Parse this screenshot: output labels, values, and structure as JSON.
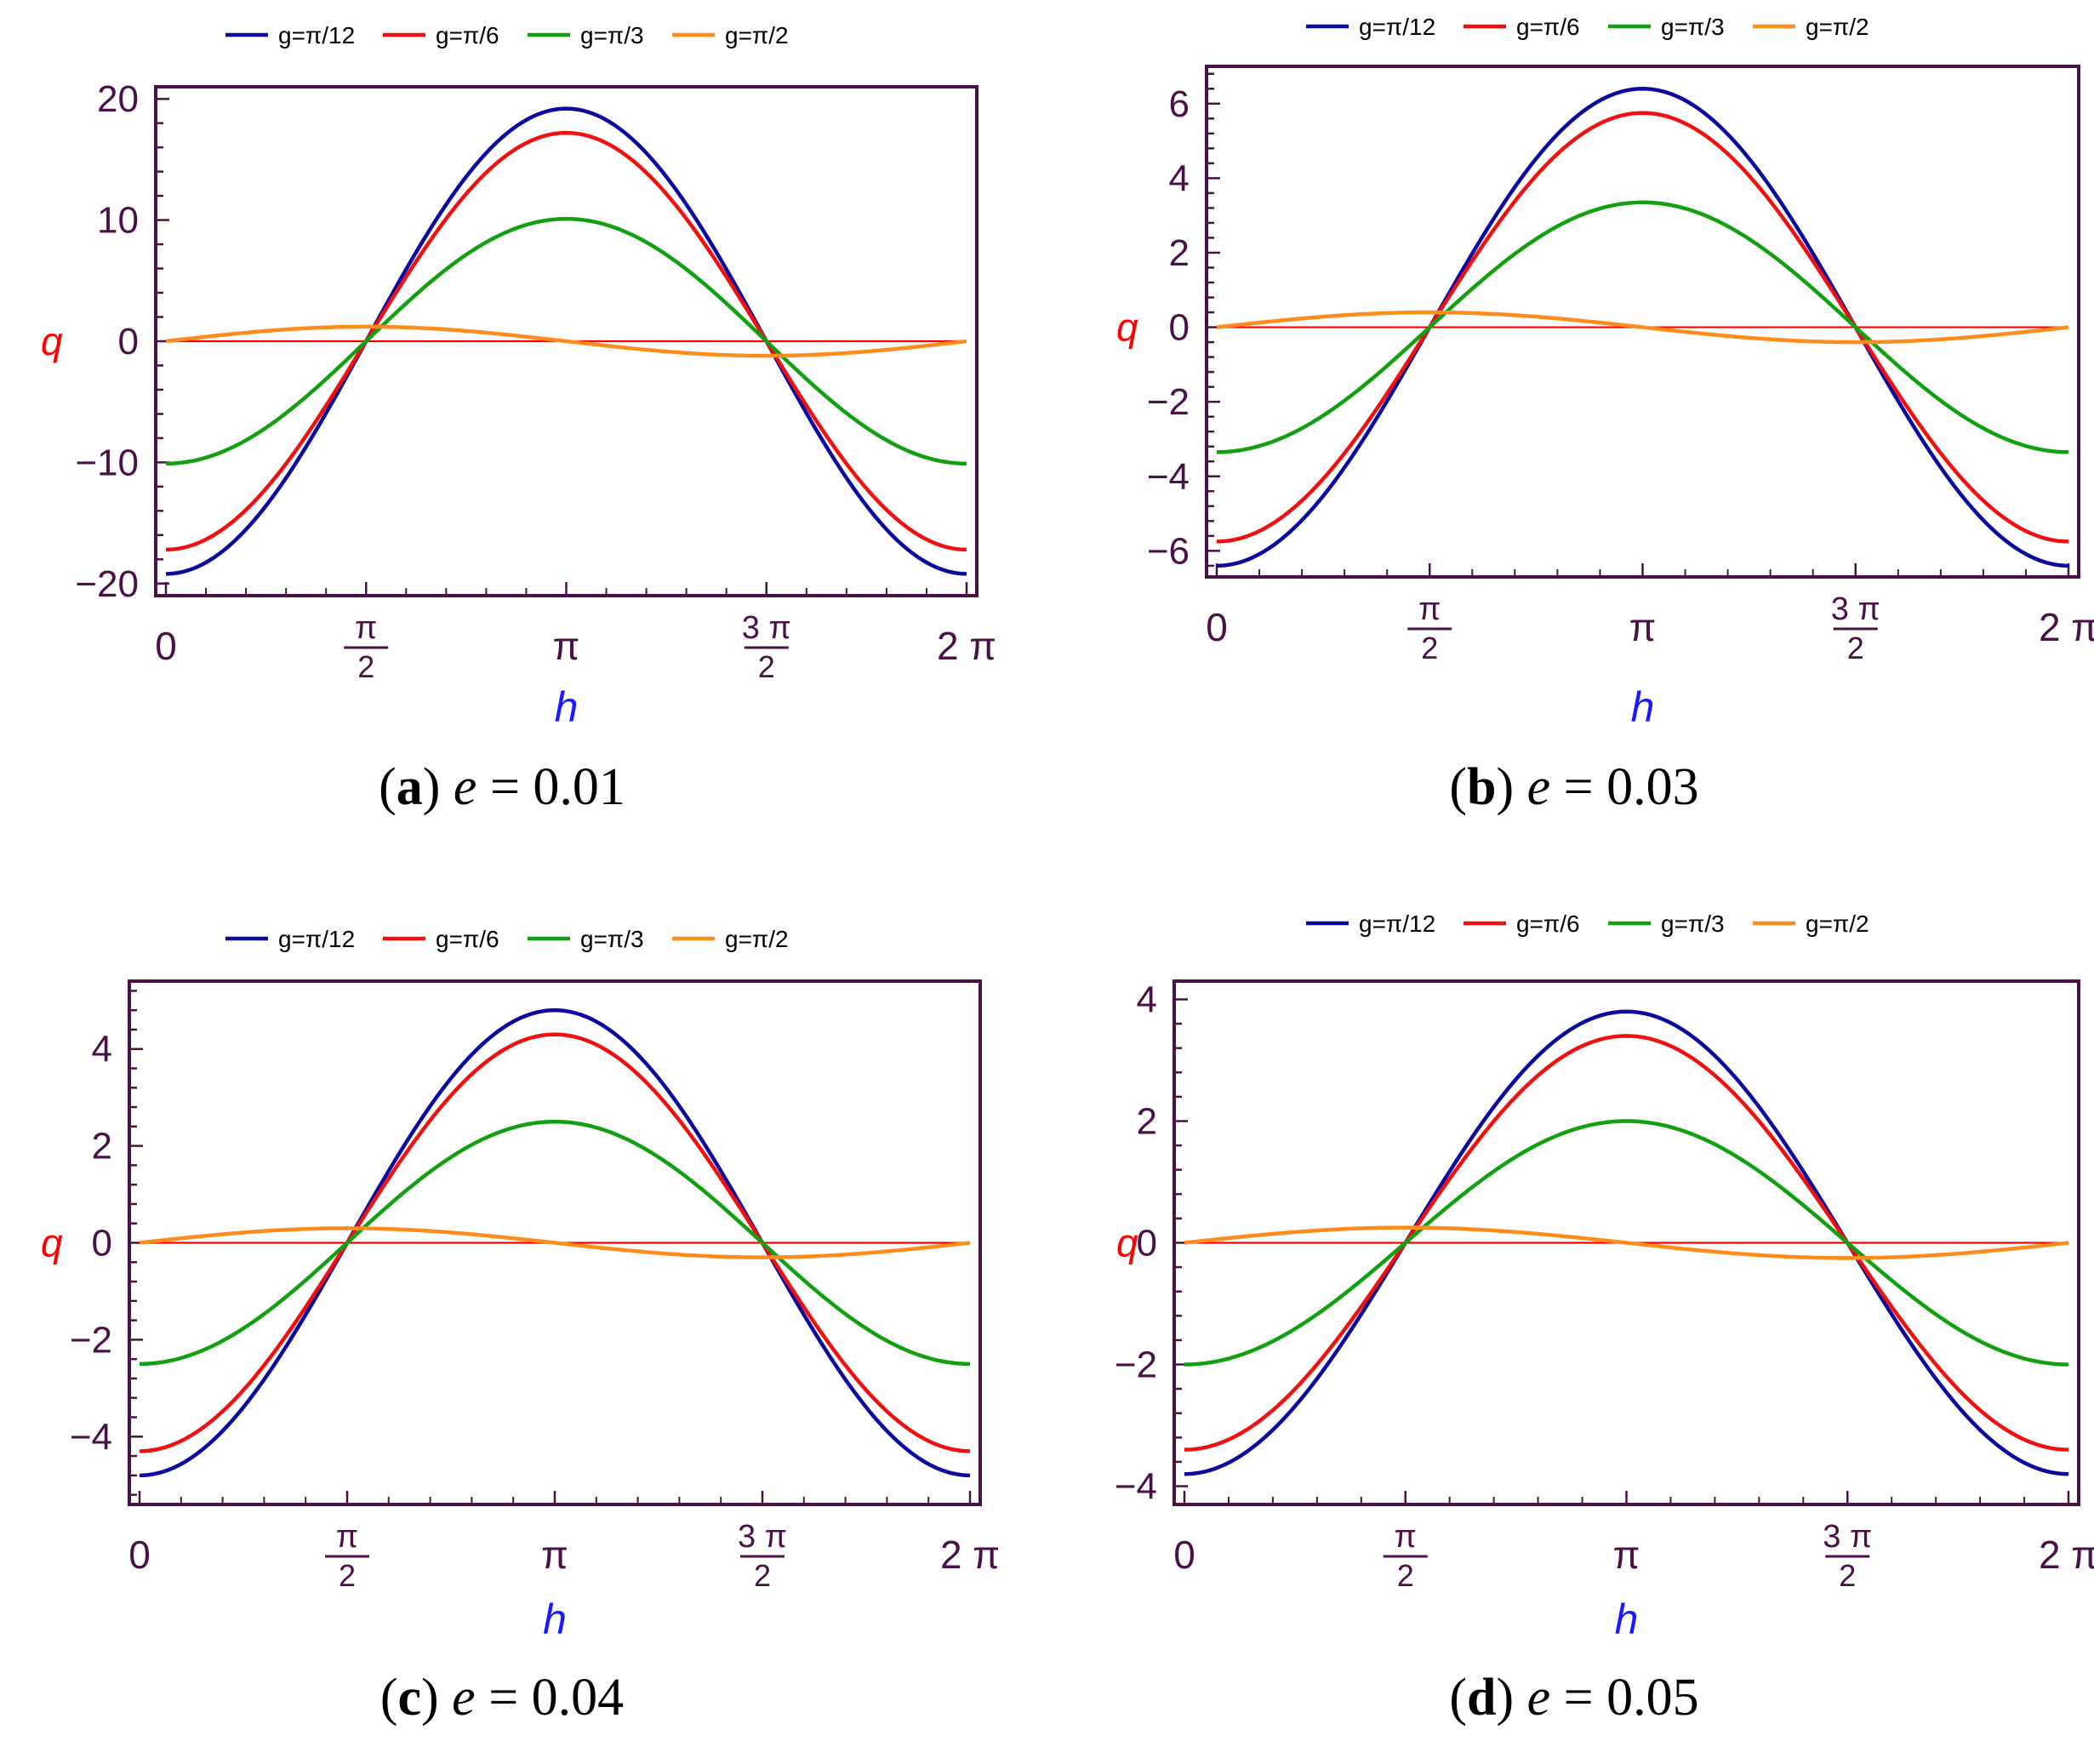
{
  "colors": {
    "frame": "#4a1048",
    "tick_label": "#4a1048",
    "ylabel": "#ff0000",
    "xlabel": "#1a1aff",
    "zero_line": "#ff0000",
    "caption": "#000000"
  },
  "chart_data": [
    {
      "type": "line",
      "panel_letter": "a",
      "caption_var": "e",
      "caption_value": "0.01",
      "xlabel": "h",
      "ylabel": "q",
      "xlim": [
        0,
        6.2832
      ],
      "ylim": [
        -21,
        21
      ],
      "yticks": [
        -20,
        -10,
        0,
        10,
        20
      ],
      "ytick_labels": [
        "−20",
        "−10",
        "0",
        "10",
        "20"
      ],
      "x_ticks": [
        {
          "value": 0,
          "label": "0",
          "num": "",
          "den": ""
        },
        {
          "value": 1.5708,
          "label": "",
          "num": "π",
          "den": "2"
        },
        {
          "value": 3.1416,
          "label": "π",
          "num": "",
          "den": ""
        },
        {
          "value": 4.7124,
          "label": "",
          "num": "3 π",
          "den": "2"
        },
        {
          "value": 6.2832,
          "label": "2 π",
          "num": "",
          "den": ""
        }
      ],
      "legend": "top",
      "series": [
        {
          "name": "g=π/12",
          "color": "#0a0a9e",
          "amplitude": 19.2
        },
        {
          "name": "g=π/6",
          "color": "#f01010",
          "amplitude": 17.2
        },
        {
          "name": "g=π/3",
          "color": "#10a010",
          "amplitude": 10.1
        },
        {
          "name": "g=π/2",
          "color": "#ff8c1a",
          "amplitude": 1.2
        }
      ]
    },
    {
      "type": "line",
      "panel_letter": "b",
      "caption_var": "e",
      "caption_value": "0.03",
      "xlabel": "h",
      "ylabel": "q",
      "xlim": [
        0,
        6.2832
      ],
      "ylim": [
        -6.7,
        7.0
      ],
      "yticks": [
        -6,
        -4,
        -2,
        0,
        2,
        4,
        6
      ],
      "ytick_labels": [
        "−6",
        "−4",
        "−2",
        "0",
        "2",
        "4",
        "6"
      ],
      "x_ticks": [
        {
          "value": 0,
          "label": "0",
          "num": "",
          "den": ""
        },
        {
          "value": 1.5708,
          "label": "",
          "num": "π",
          "den": "2"
        },
        {
          "value": 3.1416,
          "label": "π",
          "num": "",
          "den": ""
        },
        {
          "value": 4.7124,
          "label": "",
          "num": "3 π",
          "den": "2"
        },
        {
          "value": 6.2832,
          "label": "2 π",
          "num": "",
          "den": ""
        }
      ],
      "legend": "top",
      "series": [
        {
          "name": "g=π/12",
          "color": "#0a0a9e",
          "amplitude": 6.4
        },
        {
          "name": "g=π/6",
          "color": "#f01010",
          "amplitude": 5.75
        },
        {
          "name": "g=π/3",
          "color": "#10a010",
          "amplitude": 3.35
        },
        {
          "name": "g=π/2",
          "color": "#ff8c1a",
          "amplitude": 0.4
        }
      ]
    },
    {
      "type": "line",
      "panel_letter": "c",
      "caption_var": "e",
      "caption_value": "0.04",
      "xlabel": "h",
      "ylabel": "q",
      "xlim": [
        0,
        6.2832
      ],
      "ylim": [
        -5.4,
        5.4
      ],
      "yticks": [
        -4,
        -2,
        0,
        2,
        4
      ],
      "ytick_labels": [
        "−4",
        "−2",
        "0",
        "2",
        "4"
      ],
      "x_ticks": [
        {
          "value": 0,
          "label": "0",
          "num": "",
          "den": ""
        },
        {
          "value": 1.5708,
          "label": "",
          "num": "π",
          "den": "2"
        },
        {
          "value": 3.1416,
          "label": "π",
          "num": "",
          "den": ""
        },
        {
          "value": 4.7124,
          "label": "",
          "num": "3 π",
          "den": "2"
        },
        {
          "value": 6.2832,
          "label": "2 π",
          "num": "",
          "den": ""
        }
      ],
      "legend": "top",
      "series": [
        {
          "name": "g=π/12",
          "color": "#0a0a9e",
          "amplitude": 4.8
        },
        {
          "name": "g=π/6",
          "color": "#f01010",
          "amplitude": 4.3
        },
        {
          "name": "g=π/3",
          "color": "#10a010",
          "amplitude": 2.5
        },
        {
          "name": "g=π/2",
          "color": "#ff8c1a",
          "amplitude": 0.3
        }
      ]
    },
    {
      "type": "line",
      "panel_letter": "d",
      "caption_var": "e",
      "caption_value": "0.05",
      "xlabel": "h",
      "ylabel": "q",
      "xlim": [
        0,
        6.2832
      ],
      "ylim": [
        -4.3,
        4.3
      ],
      "yticks": [
        -4,
        -2,
        0,
        2,
        4
      ],
      "ytick_labels": [
        "−4",
        "−2",
        "0",
        "2",
        "4"
      ],
      "x_ticks": [
        {
          "value": 0,
          "label": "0",
          "num": "",
          "den": ""
        },
        {
          "value": 1.5708,
          "label": "",
          "num": "π",
          "den": "2"
        },
        {
          "value": 3.1416,
          "label": "π",
          "num": "",
          "den": ""
        },
        {
          "value": 4.7124,
          "label": "",
          "num": "3 π",
          "den": "2"
        },
        {
          "value": 6.2832,
          "label": "2 π",
          "num": "",
          "den": ""
        }
      ],
      "legend": "top",
      "series": [
        {
          "name": "g=π/12",
          "color": "#0a0a9e",
          "amplitude": 3.8
        },
        {
          "name": "g=π/6",
          "color": "#f01010",
          "amplitude": 3.4
        },
        {
          "name": "g=π/3",
          "color": "#10a010",
          "amplitude": 2.0
        },
        {
          "name": "g=π/2",
          "color": "#ff8c1a",
          "amplitude": 0.25
        }
      ]
    }
  ]
}
